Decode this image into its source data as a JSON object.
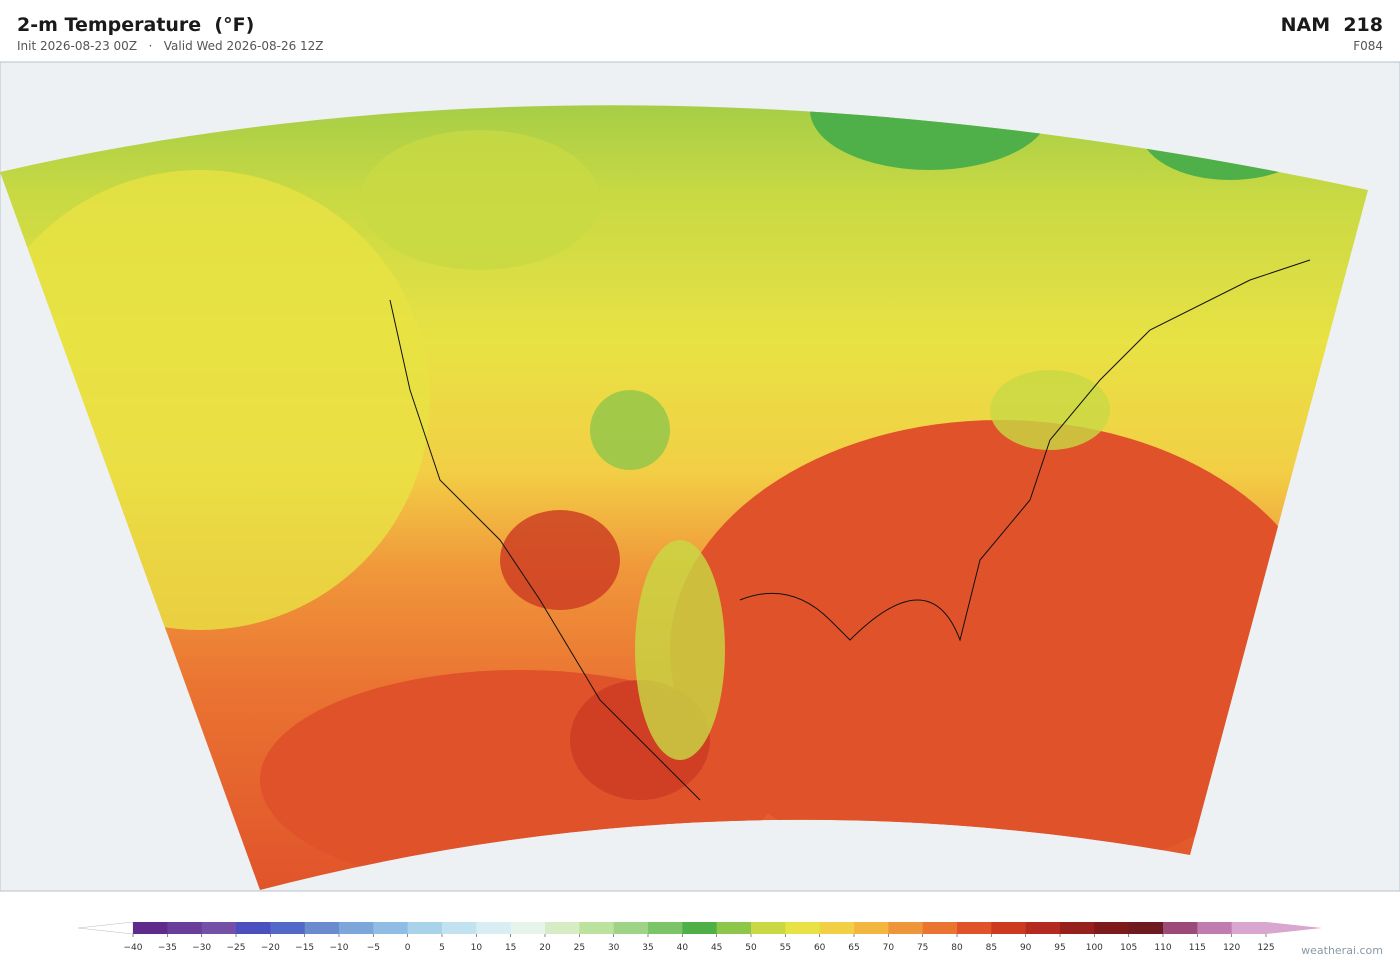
{
  "header": {
    "title": "2-m Temperature  (°F)",
    "init": "Init 2026-08-23 00Z",
    "separator": "·",
    "valid": "Valid Wed 2026-08-26 12Z",
    "model": "NAM  218",
    "forecast_hour": "F084"
  },
  "colorbar": {
    "ticks": [
      {
        "value": -40,
        "label": "−40"
      },
      {
        "value": -35,
        "label": "−35"
      },
      {
        "value": -30,
        "label": "−30"
      },
      {
        "value": -25,
        "label": "−25"
      },
      {
        "value": -20,
        "label": "−20"
      },
      {
        "value": -15,
        "label": "−15"
      },
      {
        "value": -10,
        "label": "−10"
      },
      {
        "value": -5,
        "label": "−5"
      },
      0,
      5,
      10,
      15,
      20,
      25,
      30,
      35,
      40,
      45,
      50,
      55,
      60,
      65,
      70,
      75,
      80,
      85,
      90,
      95,
      100,
      105,
      110,
      115,
      120,
      125
    ],
    "colors": [
      "#5e2a8c",
      "#6b3d9a",
      "#7450a8",
      "#4b4fbf",
      "#5368c8",
      "#6b8ad0",
      "#7da7db",
      "#8fbde3",
      "#a9d3ea",
      "#c2e2ef",
      "#d8eef2",
      "#e6f4ec",
      "#d6ecc4",
      "#bde2a0",
      "#9fd486",
      "#7cc468",
      "#4fb04a",
      "#8ec64a",
      "#c8d943",
      "#e8e244",
      "#f2cf45",
      "#f3b73f",
      "#f0963a",
      "#ea7432",
      "#e0522a",
      "#cc3a22",
      "#b52a20",
      "#96201c",
      "#7e1a1a",
      "#6e1a1e",
      "#9b4a7a",
      "#c07bb0",
      "#d9a6cf"
    ],
    "under_color": "#ffffff",
    "over_color": "#d9a6cf"
  },
  "credit": "weatherai.com"
}
